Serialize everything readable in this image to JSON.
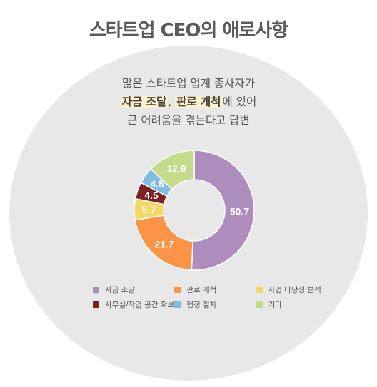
{
  "title": "스타트업 CEO의 애로사항",
  "subtitle": {
    "line1": "많은 스타트업 업계 종사자가",
    "line2_hl1": "자금 조달",
    "line2_sep": ", ",
    "line2_hl2": "판로 개척",
    "line2_rest": "에 있어",
    "line3": "큰 어려움을 겪는다고 답변"
  },
  "chart_data": {
    "type": "pie",
    "title": "스타트업 CEO의 애로사항",
    "categories": [
      "자금 조달",
      "판로 개척",
      "사업 타당성 분석",
      "사무실/작업 공간 확보",
      "행정 절차",
      "기타"
    ],
    "values": [
      50.7,
      21.7,
      5.7,
      4.5,
      4.5,
      12.9
    ],
    "data_labels": [
      "50.7",
      "21.7",
      "5.7",
      "4.5",
      "4.5",
      "12.9"
    ],
    "colors": [
      "#ae8cbd",
      "#fc9347",
      "#f4d765",
      "#7e1f22",
      "#7fbee0",
      "#c5db8c"
    ],
    "donut": true,
    "legend_position": "bottom"
  }
}
